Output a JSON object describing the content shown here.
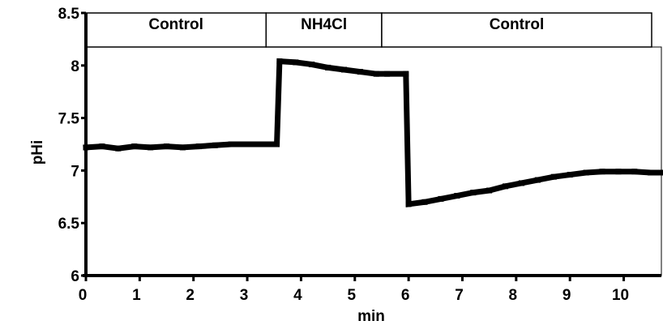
{
  "chart_data": {
    "type": "line",
    "xlabel": "min",
    "ylabel": "pHi",
    "xlim": [
      0,
      10.7
    ],
    "ylim": [
      6,
      8.5
    ],
    "x_ticks": [
      "0",
      "1",
      "2",
      "3",
      "4",
      "5",
      "6",
      "7",
      "8",
      "9",
      "10"
    ],
    "y_ticks": [
      "6",
      "6.5",
      "7",
      "7.5",
      "8",
      "8.5"
    ],
    "grid": false,
    "conditions": [
      {
        "label": "Control",
        "x_start": 0,
        "x_end": 3.35
      },
      {
        "label": "NH4Cl",
        "x_start": 3.35,
        "x_end": 5.5
      },
      {
        "label": "Control",
        "x_start": 5.5,
        "x_end": 10.7
      }
    ],
    "series": [
      {
        "x": [
          0,
          0.3,
          0.6,
          0.9,
          1.2,
          1.5,
          1.8,
          2.1,
          2.4,
          2.7,
          3.0,
          3.3,
          3.55,
          3.6,
          3.9,
          4.2,
          4.5,
          4.8,
          5.1,
          5.4,
          5.6,
          5.95,
          6.0,
          6.3,
          6.6,
          6.9,
          7.2,
          7.5,
          7.8,
          8.1,
          8.4,
          8.7,
          9.0,
          9.3,
          9.6,
          9.9,
          10.2,
          10.5,
          10.7
        ],
        "y": [
          7.22,
          7.23,
          7.21,
          7.23,
          7.22,
          7.23,
          7.22,
          7.23,
          7.24,
          7.25,
          7.25,
          7.25,
          7.25,
          8.04,
          8.03,
          8.01,
          7.98,
          7.96,
          7.94,
          7.92,
          7.92,
          7.92,
          6.68,
          6.7,
          6.73,
          6.76,
          6.79,
          6.81,
          6.85,
          6.88,
          6.91,
          6.94,
          6.96,
          6.98,
          6.99,
          6.99,
          6.99,
          6.98,
          6.98
        ]
      }
    ]
  }
}
